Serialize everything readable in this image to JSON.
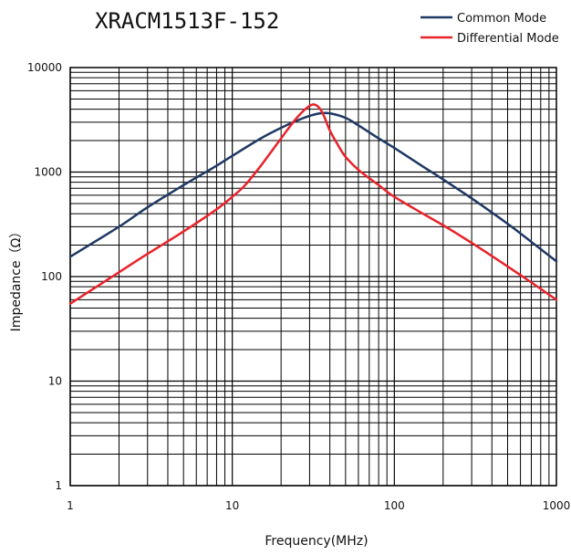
{
  "chart_data": {
    "type": "line",
    "title": "XRACM1513F-152",
    "xlabel": "Frequency(MHz)",
    "ylabel": "Impedance（Ω）",
    "xscale": "log",
    "yscale": "log",
    "xlim": [
      1,
      1000
    ],
    "ylim": [
      1,
      10000
    ],
    "xticks": [
      "1",
      "10",
      "100",
      "1000"
    ],
    "yticks": [
      "1",
      "10",
      "100",
      "1000",
      "10000"
    ],
    "grid": true,
    "legend_position": "top-right",
    "series": [
      {
        "name": "Common Mode",
        "color": "#1f3864",
        "x": [
          1,
          2,
          3,
          5,
          8,
          10,
          15,
          20,
          25,
          30,
          35,
          40,
          50,
          60,
          80,
          100,
          150,
          200,
          300,
          500,
          700,
          1000
        ],
        "y": [
          155,
          300,
          460,
          750,
          1150,
          1430,
          2100,
          2650,
          3100,
          3450,
          3650,
          3650,
          3300,
          2800,
          2100,
          1700,
          1130,
          850,
          560,
          320,
          215,
          140
        ]
      },
      {
        "name": "Differential Mode",
        "color": "#e8232a",
        "x": [
          1,
          2,
          3,
          5,
          8,
          10,
          12,
          15,
          20,
          25,
          30,
          33,
          36,
          40,
          45,
          50,
          60,
          80,
          100,
          150,
          200,
          300,
          500,
          700,
          1000
        ],
        "y": [
          55,
          110,
          165,
          270,
          440,
          580,
          750,
          1150,
          2100,
          3300,
          4300,
          4350,
          3700,
          2500,
          1800,
          1400,
          1050,
          750,
          580,
          400,
          310,
          210,
          125,
          88,
          60
        ]
      }
    ]
  }
}
